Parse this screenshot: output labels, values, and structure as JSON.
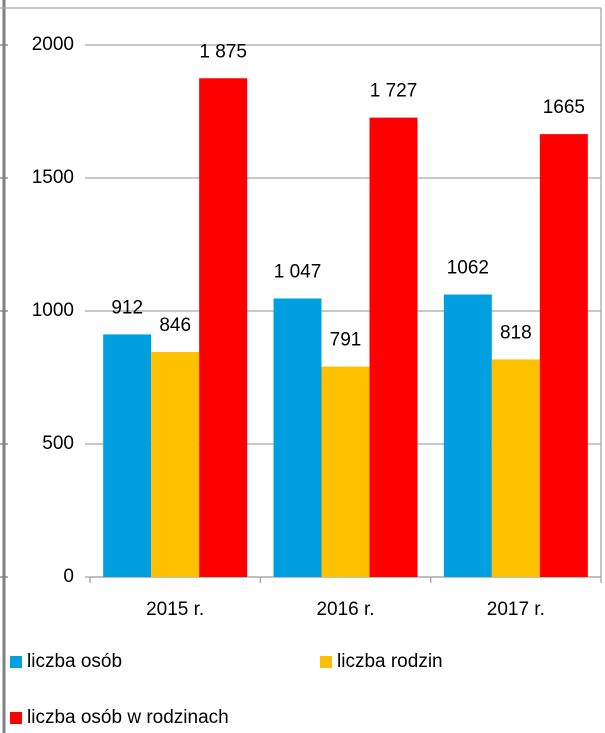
{
  "chart_data": {
    "type": "bar",
    "categories": [
      "2015 r.",
      "2016 r.",
      "2017 r."
    ],
    "series": [
      {
        "name": "liczba osób",
        "color": "#00a0e0",
        "values": [
          912,
          1047,
          1062
        ],
        "value_labels": [
          "912",
          "1 047",
          "1062"
        ]
      },
      {
        "name": "liczba rodzin",
        "color": "#ffc000",
        "values": [
          846,
          791,
          818
        ],
        "value_labels": [
          "846",
          "791",
          "818"
        ]
      },
      {
        "name": "liczba osób w rodzinach",
        "color": "#ff0000",
        "values": [
          1875,
          1727,
          1665
        ],
        "value_labels": [
          "1 875",
          "1 727",
          "1665"
        ]
      }
    ],
    "ylim": [
      0,
      2000
    ],
    "yticks": [
      0,
      500,
      1000,
      1500,
      2000
    ],
    "grid": true
  }
}
